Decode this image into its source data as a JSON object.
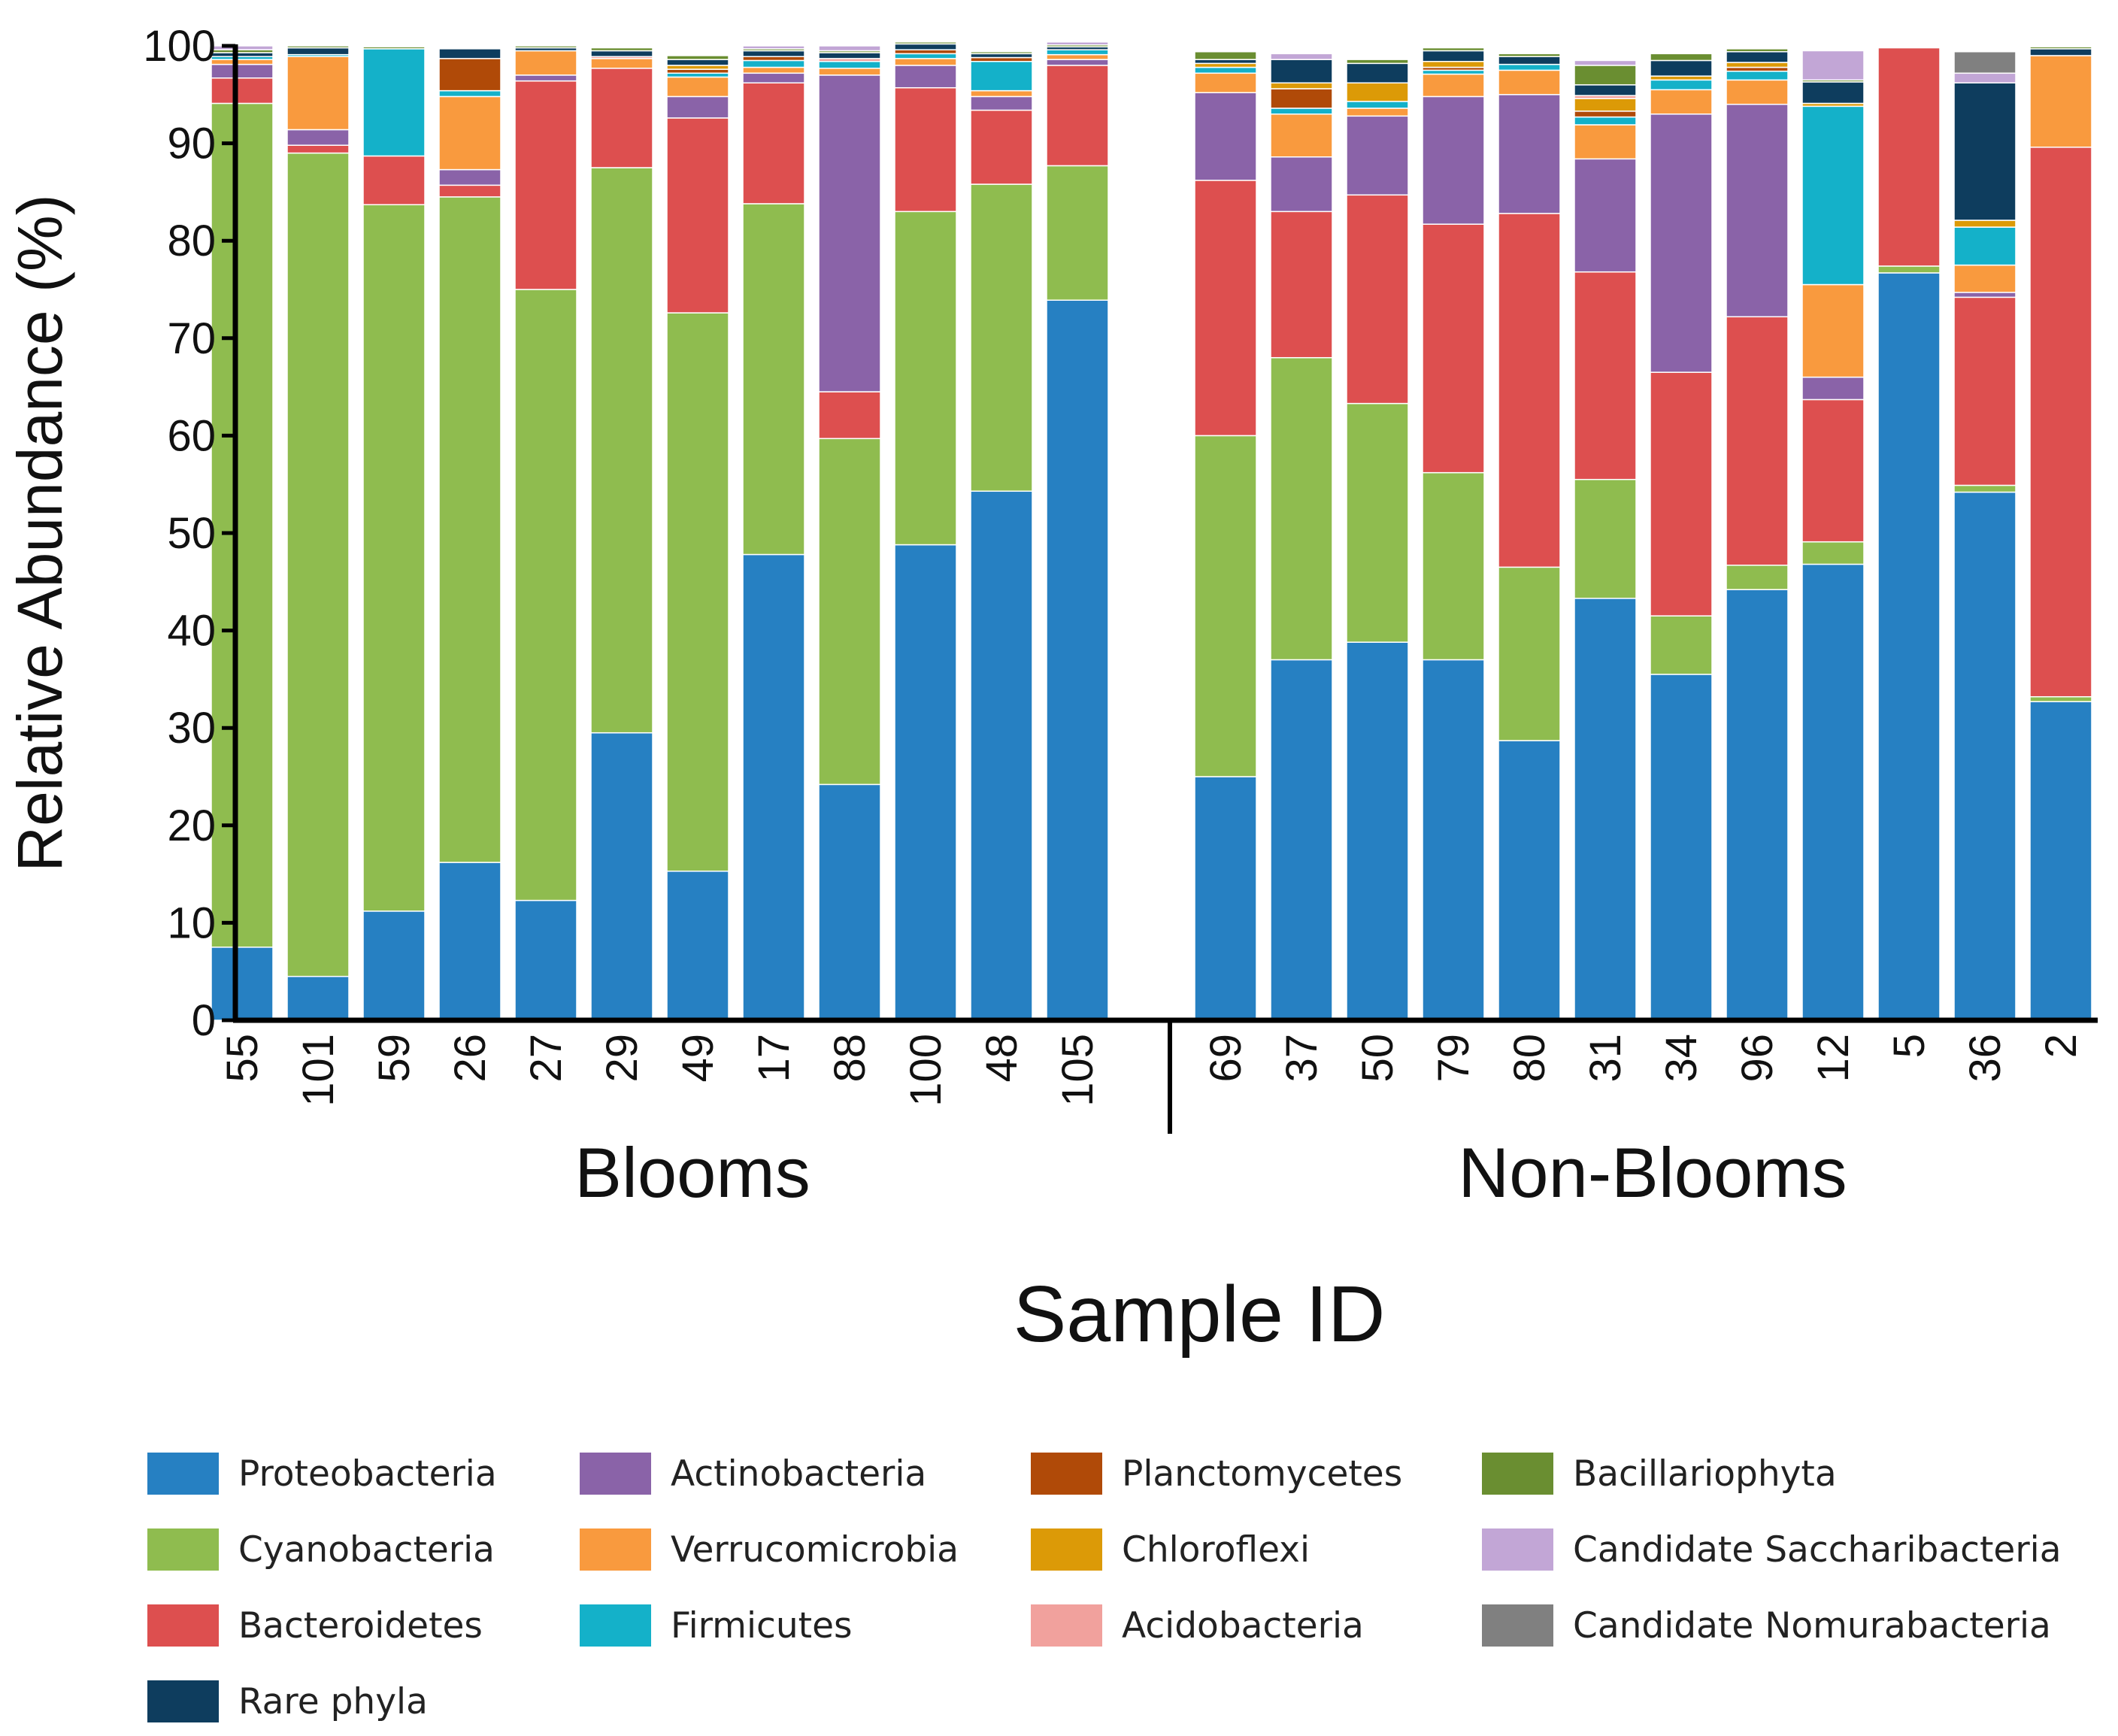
{
  "chart_data": {
    "type": "bar",
    "stacked": true,
    "ylabel": "Relative Abundance (%)",
    "xlabel": "Sample ID",
    "ylim": [
      0,
      100
    ],
    "yticks": [
      0,
      10,
      20,
      30,
      40,
      50,
      60,
      70,
      80,
      90,
      100
    ],
    "grid": false,
    "legend_position": "bottom",
    "groups": [
      {
        "label": "Blooms",
        "categories": [
          "55",
          "101",
          "59",
          "26",
          "27",
          "29",
          "49",
          "17",
          "88",
          "100",
          "48",
          "105"
        ]
      },
      {
        "label": "Non-Blooms",
        "categories": [
          "69",
          "37",
          "50",
          "79",
          "80",
          "31",
          "34",
          "96",
          "12",
          "5",
          "36",
          "2"
        ]
      }
    ],
    "categories": [
      "55",
      "101",
      "59",
      "26",
      "27",
      "29",
      "49",
      "17",
      "88",
      "100",
      "48",
      "105",
      "69",
      "37",
      "50",
      "79",
      "80",
      "31",
      "34",
      "96",
      "12",
      "5",
      "36",
      "2"
    ],
    "series": [
      {
        "name": "Proteobacteria",
        "color": "#2680c2",
        "values": [
          7.5,
          4.5,
          11.2,
          16.2,
          12.3,
          29.5,
          15.3,
          47.8,
          24.2,
          48.8,
          54.3,
          73.9,
          25.0,
          37.0,
          38.8,
          37.0,
          28.7,
          43.3,
          35.5,
          44.2,
          46.8,
          76.7,
          54.2,
          32.7
        ]
      },
      {
        "name": "Cyanobacteria",
        "color": "#8fbc4f",
        "values": [
          86.6,
          84.5,
          72.5,
          68.3,
          62.7,
          58.0,
          57.3,
          36.0,
          35.5,
          34.2,
          31.5,
          13.8,
          35.0,
          31.0,
          24.5,
          19.2,
          17.8,
          12.2,
          6.0,
          2.5,
          2.3,
          0.7,
          0.7,
          0.5
        ]
      },
      {
        "name": "Bacteroidetes",
        "color": "#dd4f4f",
        "values": [
          2.6,
          0.8,
          5.0,
          1.2,
          21.4,
          10.2,
          20.0,
          12.4,
          4.8,
          12.7,
          7.6,
          10.3,
          26.2,
          15.0,
          21.4,
          25.5,
          36.3,
          21.3,
          25.0,
          25.5,
          14.6,
          22.4,
          19.3,
          56.4
        ]
      },
      {
        "name": "Actinobacteria",
        "color": "#8a63a8",
        "values": [
          1.4,
          1.6,
          0.0,
          1.6,
          0.6,
          0.0,
          2.2,
          1.0,
          32.5,
          2.3,
          1.4,
          0.6,
          9.0,
          5.6,
          8.1,
          13.1,
          12.2,
          11.6,
          26.5,
          21.8,
          2.3,
          0.0,
          0.5,
          0.0
        ]
      },
      {
        "name": "Verrucomicrobia",
        "color": "#f99a3e",
        "values": [
          0.5,
          7.5,
          0.0,
          7.5,
          2.5,
          1.0,
          2.0,
          0.6,
          0.7,
          0.7,
          0.6,
          0.5,
          2.0,
          4.4,
          0.8,
          2.3,
          2.5,
          3.5,
          2.5,
          2.5,
          9.5,
          0.0,
          2.8,
          9.4
        ]
      },
      {
        "name": "Firmicutes",
        "color": "#14b1c9",
        "values": [
          0.3,
          0.2,
          11.0,
          0.6,
          0.0,
          0.0,
          0.4,
          0.7,
          0.7,
          0.5,
          3.0,
          0.5,
          0.6,
          0.6,
          0.7,
          0.4,
          0.6,
          0.8,
          1.0,
          0.9,
          18.3,
          0.0,
          3.9,
          0.0
        ]
      },
      {
        "name": "Planctomycetes",
        "color": "#b04a08",
        "values": [
          0.0,
          0.0,
          0.0,
          3.3,
          0.0,
          0.0,
          0.4,
          0.4,
          0.0,
          0.4,
          0.4,
          0.0,
          0.0,
          2.0,
          0.0,
          0.3,
          0.0,
          0.6,
          0.0,
          0.4,
          0.0,
          0.0,
          0.0,
          0.0
        ]
      },
      {
        "name": "Chloroflexi",
        "color": "#dc9a07",
        "values": [
          0.0,
          0.0,
          0.0,
          0.0,
          0.0,
          0.0,
          0.4,
          0.0,
          0.0,
          0.0,
          0.0,
          0.0,
          0.4,
          0.6,
          1.9,
          0.6,
          0.0,
          1.3,
          0.4,
          0.5,
          0.3,
          0.0,
          0.7,
          0.0
        ]
      },
      {
        "name": "Acidobacteria",
        "color": "#f1a19d",
        "values": [
          0.0,
          0.0,
          0.0,
          0.0,
          0.0,
          0.2,
          0.0,
          0.0,
          0.3,
          0.0,
          0.0,
          0.0,
          0.0,
          0.0,
          0.0,
          0.0,
          0.0,
          0.3,
          0.0,
          0.0,
          0.0,
          0.0,
          0.0,
          0.0
        ]
      },
      {
        "name": "Rare phyla",
        "color": "#0e3d5e",
        "values": [
          0.4,
          0.7,
          0.0,
          1.0,
          0.3,
          0.6,
          0.6,
          0.6,
          0.6,
          0.6,
          0.4,
          0.3,
          0.4,
          2.4,
          2.0,
          1.1,
          0.8,
          1.1,
          1.6,
          1.1,
          2.2,
          0.0,
          14.1,
          0.7
        ]
      },
      {
        "name": "Bacillariophyta",
        "color": "#6a8e31",
        "values": [
          0.3,
          0.2,
          0.2,
          0.0,
          0.2,
          0.3,
          0.4,
          0.2,
          0.2,
          0.2,
          0.2,
          0.2,
          0.8,
          0.0,
          0.4,
          0.3,
          0.3,
          2.0,
          0.7,
          0.3,
          0.2,
          0.0,
          0.0,
          0.2
        ]
      },
      {
        "name": "Candidate Saccharibacteria",
        "color": "#c2a6d6",
        "values": [
          0.4,
          0.0,
          0.0,
          0.0,
          0.0,
          0.0,
          0.0,
          0.3,
          0.5,
          0.0,
          0.0,
          0.3,
          0.0,
          0.6,
          0.0,
          0.0,
          0.0,
          0.5,
          0.0,
          0.0,
          3.0,
          0.0,
          1.0,
          0.0
        ]
      },
      {
        "name": "Candidate Nomurabacteria",
        "color": "#808080",
        "values": [
          0.0,
          0.0,
          0.0,
          0.0,
          0.0,
          0.0,
          0.0,
          0.0,
          0.0,
          0.0,
          0.0,
          0.0,
          0.0,
          0.0,
          0.0,
          0.0,
          0.0,
          0.0,
          0.0,
          0.0,
          0.0,
          0.0,
          2.2,
          0.0
        ]
      }
    ],
    "legend": [
      "Proteobacteria",
      "Actinobacteria",
      "Planctomycetes",
      "Bacillariophyta",
      "Cyanobacteria",
      "Verrucomicrobia",
      "Chloroflexi",
      "Candidate Saccharibacteria",
      "Bacteroidetes",
      "Firmicutes",
      "Acidobacteria",
      "Candidate Nomurabacteria",
      "Rare phyla"
    ]
  }
}
